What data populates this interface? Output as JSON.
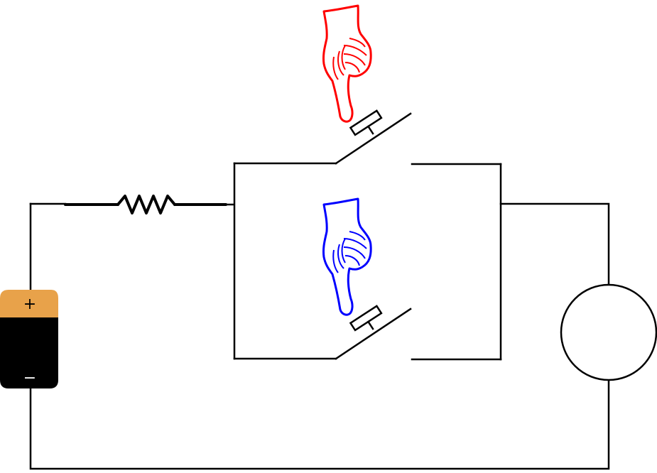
{
  "circuit": {
    "battery": {
      "positive_symbol": "+",
      "negative_symbol": "−",
      "cap_color": "#E8A24A",
      "body_color": "#000000"
    },
    "upper_switch_hand": {
      "icon": "pointing-hand-icon",
      "color": "#FF0000"
    },
    "lower_switch_hand": {
      "icon": "pointing-hand-icon",
      "color": "#0000FF"
    },
    "wire_color": "#000000",
    "bulb_fill": "#FFFFFF"
  }
}
